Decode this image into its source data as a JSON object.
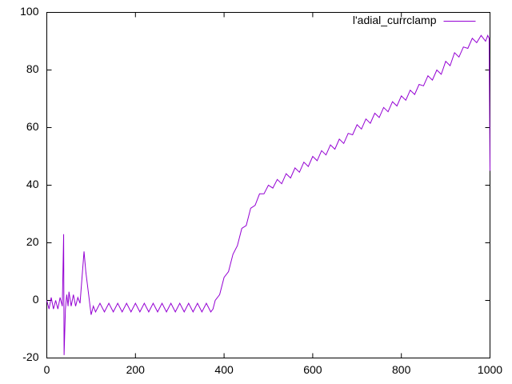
{
  "chart_data": {
    "type": "line",
    "x": [
      0,
      5,
      10,
      15,
      20,
      25,
      30,
      35,
      38,
      39,
      42,
      45,
      48,
      50,
      55,
      60,
      65,
      70,
      75,
      80,
      84,
      88,
      92,
      96,
      100,
      105,
      110,
      120,
      130,
      140,
      150,
      160,
      170,
      180,
      190,
      200,
      210,
      220,
      230,
      240,
      250,
      260,
      270,
      280,
      290,
      300,
      310,
      320,
      330,
      340,
      350,
      360,
      370,
      375,
      380,
      390,
      400,
      410,
      420,
      430,
      440,
      450,
      460,
      470,
      480,
      490,
      500,
      510,
      520,
      530,
      540,
      550,
      560,
      570,
      580,
      590,
      600,
      610,
      620,
      630,
      640,
      650,
      660,
      670,
      680,
      690,
      700,
      710,
      720,
      730,
      740,
      750,
      760,
      770,
      780,
      790,
      800,
      810,
      820,
      830,
      840,
      850,
      860,
      870,
      880,
      890,
      900,
      910,
      920,
      930,
      940,
      950,
      960,
      970,
      980,
      990,
      995,
      998,
      1000
    ],
    "series": [
      {
        "name": "l'adial_currclamp",
        "color": "#9400d3",
        "values": [
          0,
          -3,
          1,
          -3,
          0,
          -3,
          1,
          -2,
          23,
          -19,
          -3,
          2,
          -2,
          3,
          -2,
          2,
          -2,
          1,
          -1,
          9,
          17,
          10,
          5,
          0,
          -5,
          -2,
          -4,
          -1,
          -4,
          -1,
          -4,
          -1,
          -4,
          -1,
          -4,
          -1,
          -4,
          -1,
          -4,
          -1,
          -4,
          -1,
          -4,
          -1,
          -4,
          -1,
          -4,
          -1,
          -4,
          -1,
          -4,
          -1,
          -4,
          -3,
          0,
          2,
          8,
          10,
          16,
          19,
          25,
          26,
          32,
          33,
          37,
          37,
          40,
          39,
          42,
          40.5,
          44,
          42.5,
          46,
          44.5,
          48,
          46.5,
          50,
          48.5,
          52,
          50.5,
          54,
          52.5,
          56,
          54.5,
          58,
          57.5,
          61,
          59.5,
          63,
          61.5,
          65,
          63.5,
          67,
          65.5,
          69,
          67.5,
          71,
          69.5,
          73,
          71.5,
          75,
          74.5,
          78,
          76.5,
          80,
          78.5,
          83,
          81.5,
          86,
          84.5,
          88,
          87.5,
          91,
          89.5,
          92,
          90,
          92,
          91,
          45
        ]
      }
    ],
    "xlim": [
      0,
      1000
    ],
    "xticks": [
      0,
      200,
      400,
      600,
      800,
      1000
    ],
    "ylim": [
      -20,
      100
    ],
    "yticks": [
      -20,
      0,
      20,
      40,
      60,
      80,
      100
    ],
    "legend": "top-right"
  }
}
